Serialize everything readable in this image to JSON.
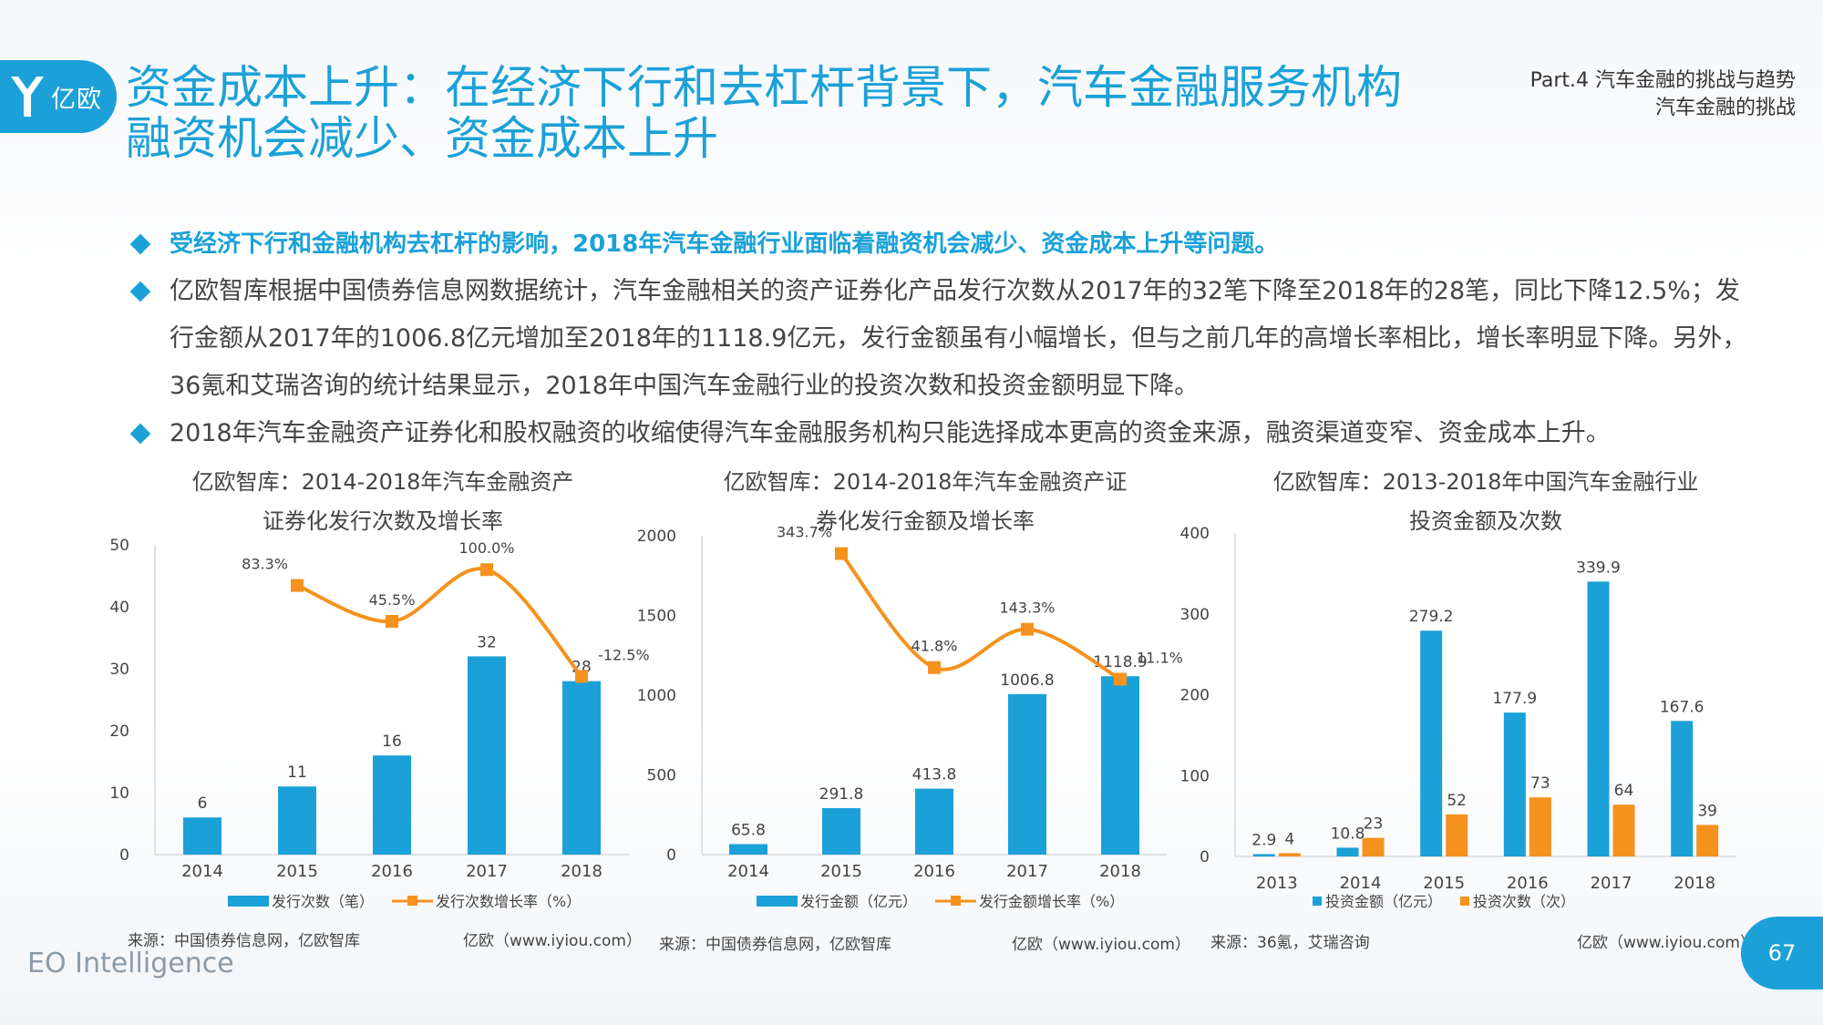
{
  "header": {
    "logo_text": "亿欧",
    "title": "资金成本上升：在经济下行和去杠杆背景下，汽车金融服务机构融资机会减少、资金成本上升",
    "part_line1": "Part.4 汽车金融的挑战与趋势",
    "part_line2": "汽车金融的挑战"
  },
  "bullets": [
    "受经济下行和金融机构去杠杆的影响，2018年汽车金融行业面临着融资机会减少、资金成本上升等问题。",
    "亿欧智库根据中国债券信息网数据统计，汽车金融相关的资产证券化产品发行次数从2017年的32笔下降至2018年的28笔，同比下降12.5%；发行金额从2017年的1006.8亿元增加至2018年的1118.9亿元，发行金额虽有小幅增长，但与之前几年的高增长率相比，增长率明显下降。另外，36氪和艾瑞咨询的统计结果显示，2018年中国汽车金融行业的投资次数和投资金额明显下降。",
    "2018年汽车金融资产证券化和股权融资的收缩使得汽车金融服务机构只能选择成本更高的资金来源，融资渠道变窄、资金成本上升。"
  ],
  "colors": {
    "blue": "#1ba1d8",
    "orange": "#f5921e",
    "axis": "#d9d9d9"
  },
  "chart_data": [
    {
      "type": "bar",
      "title_line1": "亿欧智库：2014-2018年汽车金融资产",
      "title_line2": "证券化发行次数及增长率",
      "categories": [
        "2014",
        "2015",
        "2016",
        "2017",
        "2018"
      ],
      "ylim": [
        0,
        50
      ],
      "yticks": [
        0,
        10,
        20,
        30,
        40,
        50
      ],
      "series": [
        {
          "name": "发行次数（笔）",
          "type": "bar",
          "values": [
            6,
            11,
            16,
            32,
            28
          ],
          "labels": [
            "6",
            "11",
            "16",
            "32",
            "28"
          ]
        },
        {
          "name": "发行次数增长率（%）",
          "type": "line",
          "values": [
            null,
            83.3,
            45.5,
            100.0,
            -12.5
          ],
          "labels": [
            "",
            "83.3%",
            "45.5%",
            "100.0%",
            "-12.5%"
          ]
        }
      ],
      "source": "来源：中国债券信息网，亿欧智库",
      "credit": "亿欧（www.iyiou.com）"
    },
    {
      "type": "bar",
      "title_line1": "亿欧智库：2014-2018年汽车金融资产证",
      "title_line2": "券化发行金额及增长率",
      "categories": [
        "2014",
        "2015",
        "2016",
        "2017",
        "2018"
      ],
      "ylim": [
        0,
        2000
      ],
      "yticks": [
        0,
        500,
        1000,
        1500,
        2000
      ],
      "series": [
        {
          "name": "发行金额（亿元）",
          "type": "bar",
          "values": [
            65.8,
            291.8,
            413.8,
            1006.8,
            1118.9
          ],
          "labels": [
            "65.8",
            "291.8",
            "413.8",
            "1006.8",
            "1118.9"
          ]
        },
        {
          "name": "发行金额增长率（%）",
          "type": "line",
          "values": [
            null,
            343.7,
            41.8,
            143.3,
            11.1
          ],
          "labels": [
            "",
            "343.7%",
            "41.8%",
            "143.3%",
            "11.1%"
          ]
        }
      ],
      "source": "来源：中国债券信息网，亿欧智库",
      "credit": "亿欧（www.iyiou.com）"
    },
    {
      "type": "bar",
      "title_line1": "亿欧智库：2013-2018年中国汽车金融行业",
      "title_line2": "投资金额及次数",
      "categories": [
        "2013",
        "2014",
        "2015",
        "2016",
        "2017",
        "2018"
      ],
      "ylim": [
        0,
        400
      ],
      "yticks": [
        0,
        100,
        200,
        300,
        400
      ],
      "series": [
        {
          "name": "投资金额（亿元）",
          "type": "bar",
          "values": [
            2.9,
            10.8,
            279.2,
            177.9,
            339.9,
            167.6
          ],
          "labels": [
            "2.9",
            "10.8",
            "279.2",
            "177.9",
            "339.9",
            "167.6"
          ]
        },
        {
          "name": "投资次数（次）",
          "type": "bar",
          "values": [
            4,
            23,
            52,
            73,
            64,
            39
          ],
          "labels": [
            "4",
            "23",
            "52",
            "73",
            "64",
            "39"
          ]
        }
      ],
      "source": "来源：36氪，艾瑞咨询",
      "credit": "亿欧（www.iyiou.com）"
    }
  ],
  "footer": {
    "brand": "EO Intelligence",
    "page": "67"
  }
}
